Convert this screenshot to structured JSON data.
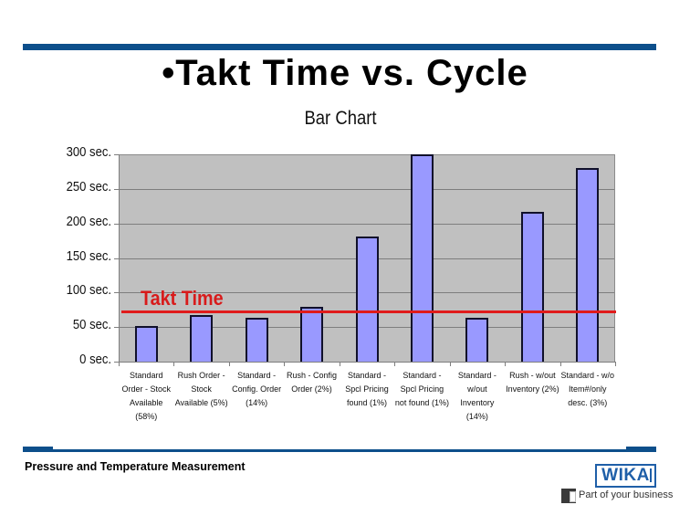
{
  "slide": {
    "title": "•Takt Time vs. Cycle",
    "footer": "Pressure and Temperature Measurement",
    "logo": {
      "brand": "WIKA",
      "tagline": "Part of your business"
    },
    "colors": {
      "rule": "#0d4f8b",
      "bar": "#9999ff",
      "takt": "#e01b1b",
      "plot_bg": "#c0c0c0"
    }
  },
  "chart_data": {
    "type": "bar",
    "title": "Bar Chart",
    "xlabel": "",
    "ylabel": "",
    "ylim": [
      0,
      300
    ],
    "yticks": [
      "300 sec.",
      "250 sec.",
      "200 sec.",
      "150 sec.",
      "100 sec.",
      "50 sec.",
      "0 sec."
    ],
    "grid": true,
    "categories": [
      "Standard\nOrder - Stock\nAvailable\n(58%)",
      "Rush Order -\nStock\nAvailable (5%)",
      "Standard -\nConfig. Order\n(14%)",
      "Rush - Config\nOrder (2%)",
      "Standard -\nSpcl Pricing\nfound (1%)",
      "Standard -\nSpcl Pricing\nnot found (1%)",
      "Standard -\nw/out\nInventory\n(14%)",
      "Rush - w/out\nInventory (2%)",
      "Standard - w/o\nItem#/only\ndesc. (3%)"
    ],
    "values": [
      52,
      67,
      63,
      79,
      181,
      300,
      63,
      217,
      280
    ],
    "reference_line": {
      "label": "Takt Time",
      "value": 72
    }
  }
}
